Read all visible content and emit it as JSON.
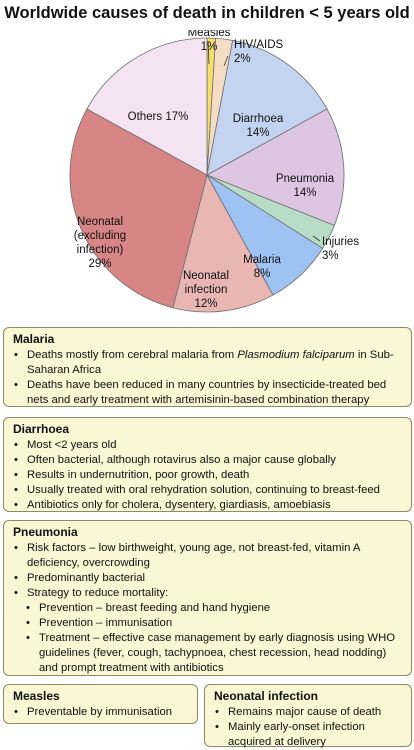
{
  "chart_data": {
    "type": "pie",
    "title": "Worldwide causes of death in children < 5 years old",
    "slices": [
      {
        "name": "Measles",
        "value": 1,
        "label": "1%",
        "color": "#f6e06a"
      },
      {
        "name": "HIV/AIDS",
        "value": 2,
        "label": "2%",
        "color": "#f4ddc4"
      },
      {
        "name": "Diarrhoea",
        "value": 14,
        "label": "14%",
        "color": "#c4d3ef"
      },
      {
        "name": "Pneumonia",
        "value": 14,
        "label": "14%",
        "color": "#ddc6e2"
      },
      {
        "name": "Injuries",
        "value": 3,
        "label": "3%",
        "color": "#b9dcc7"
      },
      {
        "name": "Malaria",
        "value": 8,
        "label": "8%",
        "color": "#9ec3f2"
      },
      {
        "name": "Neonatal infection",
        "value": 12,
        "label": "12%",
        "color": "#e9b6b4"
      },
      {
        "name": "Neonatal (excluding infection)",
        "value": 29,
        "label": "29%",
        "color": "#d88585"
      },
      {
        "name": "Others",
        "value": 17,
        "label": "17%",
        "color": "#f4e3f2"
      }
    ]
  },
  "boxes": {
    "malaria": {
      "title": "Malaria",
      "b1_pre": "Deaths mostly from cerebral malaria from ",
      "b1_em": "Plasmodium falciparum",
      "b1_post": " in Sub-Saharan Africa",
      "b2": "Deaths have been reduced in many countries by insecticide-treated bed nets and early treatment with artemisinin-based combination therapy"
    },
    "diarrhoea": {
      "title": "Diarrhoea",
      "items": [
        "Most <2 years old",
        "Often bacterial, although rotavirus also a major cause globally",
        "Results in undernutrition, poor growth, death",
        "Usually treated with oral rehydration solution, continuing to breast-feed",
        "Antibiotics only for cholera, dysentery, giardiasis, amoebiasis"
      ]
    },
    "pneumonia": {
      "title": "Pneumonia",
      "items": [
        "Risk factors – low birthweight, young age, not breast-fed, vitamin A deficiency, overcrowding",
        "Predominantly bacterial",
        "Strategy to reduce mortality:"
      ],
      "sub_items": [
        "Prevention – breast feeding and hand hygiene",
        "Prevention – immunisation",
        "Treatment – effective case management by early diagnosis using WHO guidelines (fever, cough, tachypnoea, chest recession, head nodding) and prompt treatment with antibiotics"
      ]
    },
    "measles": {
      "title": "Measles",
      "items": [
        "Preventable by immunisation"
      ]
    },
    "neonatal": {
      "title": "Neonatal infection",
      "items": [
        "Remains major cause of death",
        "Mainly early-onset infection acquired at delivery"
      ]
    }
  }
}
